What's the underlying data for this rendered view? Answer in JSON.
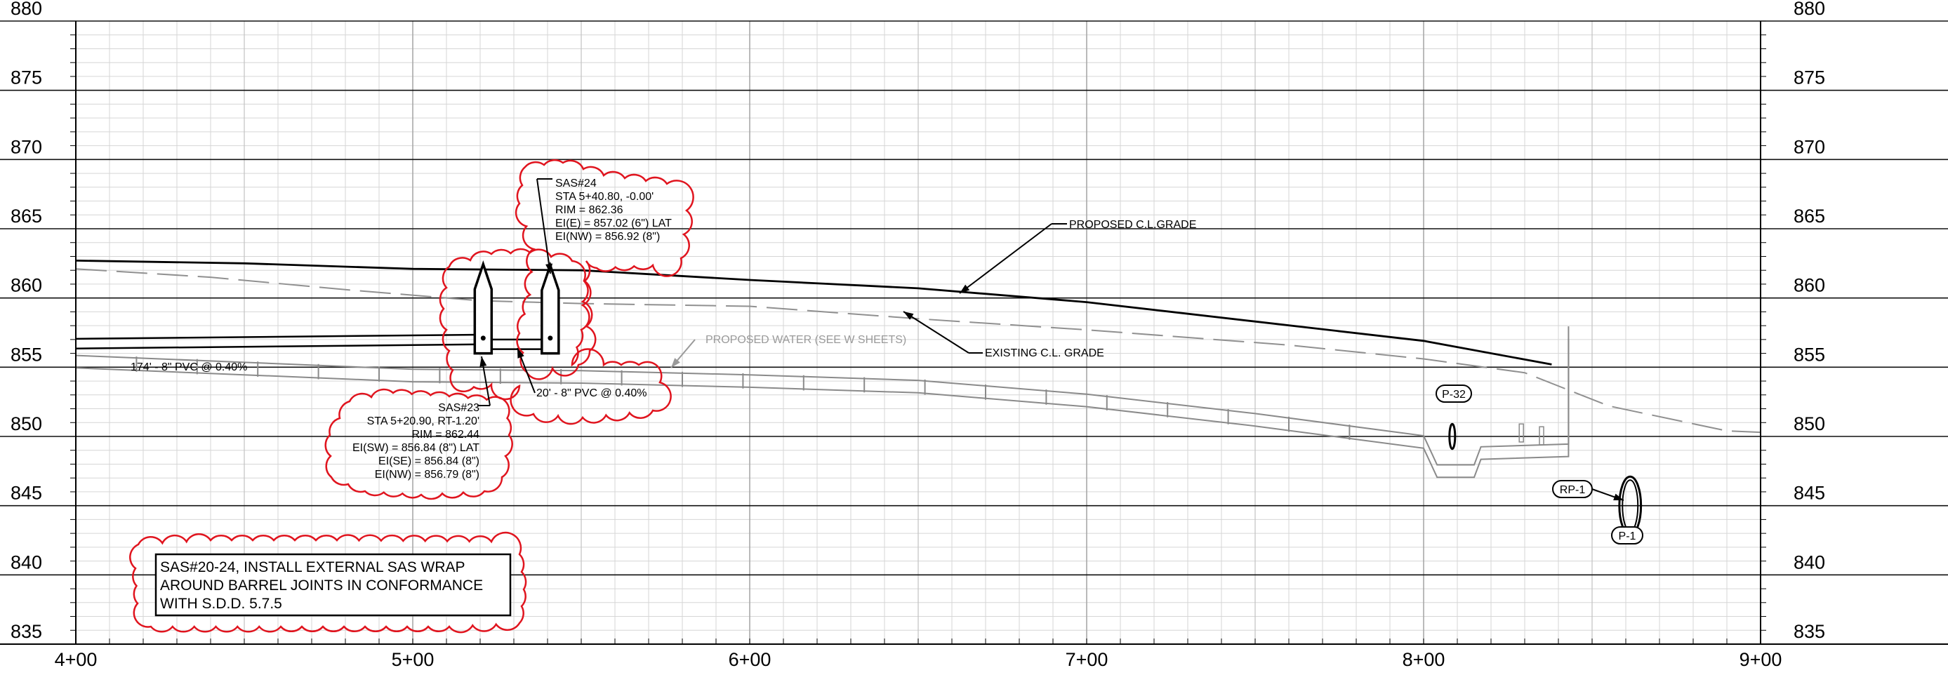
{
  "chart_data": {
    "type": "line",
    "x_axis": {
      "range": [
        400,
        900
      ],
      "tick_labels": [
        "4+00",
        "5+00",
        "6+00",
        "7+00",
        "8+00",
        "9+00"
      ],
      "tick_values": [
        400,
        500,
        600,
        700,
        800,
        900
      ]
    },
    "y_axis": {
      "range": [
        835,
        880
      ],
      "tick_labels": [
        "880",
        "875",
        "870",
        "865",
        "860",
        "855",
        "850",
        "845",
        "840",
        "835"
      ],
      "tick_values": [
        880,
        875,
        870,
        865,
        860,
        855,
        850,
        845,
        840,
        835
      ]
    },
    "grid": true,
    "series": [
      {
        "name": "PROPOSED C.L.GRADE",
        "style": "solid",
        "color": "#000000",
        "points": [
          [
            400,
            862.7
          ],
          [
            450,
            862.5
          ],
          [
            500,
            862.1
          ],
          [
            550,
            862.0
          ],
          [
            600,
            861.3
          ],
          [
            650,
            860.7
          ],
          [
            700,
            859.7
          ],
          [
            750,
            858.3
          ],
          [
            800,
            856.9
          ],
          [
            838,
            855.2
          ]
        ]
      },
      {
        "name": "EXISTING C.L. GRADE",
        "style": "dashed",
        "color": "#909090",
        "points": [
          [
            400,
            862.1
          ],
          [
            440,
            861.5
          ],
          [
            480,
            860.6
          ],
          [
            520,
            859.8
          ],
          [
            550,
            859.6
          ],
          [
            600,
            859.4
          ],
          [
            650,
            858.5
          ],
          [
            700,
            857.7
          ],
          [
            760,
            856.6
          ],
          [
            800,
            855.6
          ],
          [
            830,
            854.6
          ],
          [
            855,
            852.2
          ],
          [
            890,
            850.4
          ],
          [
            900,
            850.3
          ]
        ]
      },
      {
        "name": "PROPOSED WATER (SEE W SHEETS)",
        "style": "double",
        "color": "#8a8a8a",
        "points": [
          [
            400,
            855.4
          ],
          [
            450,
            854.9
          ],
          [
            500,
            854.4
          ],
          [
            550,
            854.3
          ],
          [
            600,
            854.0
          ],
          [
            650,
            853.6
          ],
          [
            700,
            852.6
          ],
          [
            750,
            851.2
          ],
          [
            800,
            849.6
          ],
          [
            804,
            847.5
          ],
          [
            815,
            847.5
          ],
          [
            817,
            848.8
          ],
          [
            843,
            849.0
          ],
          [
            843,
            857.5
          ]
        ]
      },
      {
        "name": "",
        "style": "pipe",
        "color": "#000000",
        "points": [
          [
            400,
            856.7
          ],
          [
            520,
            857.0
          ]
        ]
      }
    ],
    "structures": [
      {
        "name": "SAS#23",
        "station": 520.9,
        "rim": 862.44,
        "invert": 856.0
      },
      {
        "name": "SAS#24",
        "station": 540.8,
        "rim": 862.36,
        "invert": 856.0
      }
    ],
    "circles": [
      {
        "label": "P-32",
        "station": 808.5,
        "elevation": 850.0,
        "rx_units": 1.0,
        "ry_units": 0.9
      },
      {
        "label": "P-1",
        "station": 861.3,
        "elevation": 845.0,
        "rx_units": 2.2,
        "ry_units": 2.1
      }
    ],
    "annotations": {
      "pipe1": "174' - 8\" PVC @ 0.40%",
      "pipe2": "20' - 8\" PVC @ 0.40%",
      "proposed_grade": "PROPOSED C.L.GRADE",
      "existing_grade": "EXISTING C.L. GRADE",
      "water": "PROPOSED WATER (SEE W SHEETS)",
      "sas24": [
        "SAS#24",
        "STA 5+40.80, -0.00'",
        "RIM = 862.36",
        "EI(E) = 857.02 (6\") LAT",
        "EI(NW) = 856.92 (8\")"
      ],
      "sas23": [
        "SAS#23",
        "STA 5+20.90, RT-1.20'",
        "RIM = 862.44",
        "EI(SW) = 856.84 (8\") LAT",
        "EI(SE) = 856.84 (8\")",
        "EI(NW) = 856.79 (8\")"
      ],
      "tag_p32": "P-32",
      "tag_rp1": "RP-1",
      "tag_p1": "P-1",
      "note": [
        "SAS#20-24, INSTALL EXTERNAL SAS WRAP",
        "AROUND BARREL JOINTS IN CONFORMANCE",
        "WITH S.D.D. 5.7.5"
      ]
    }
  },
  "colors": {
    "grid_major": "#a8a8a8",
    "grid_minor": "#d6d6d6",
    "cloud": "#e0141e",
    "text": "#000000",
    "water": "#8a8a8a"
  }
}
